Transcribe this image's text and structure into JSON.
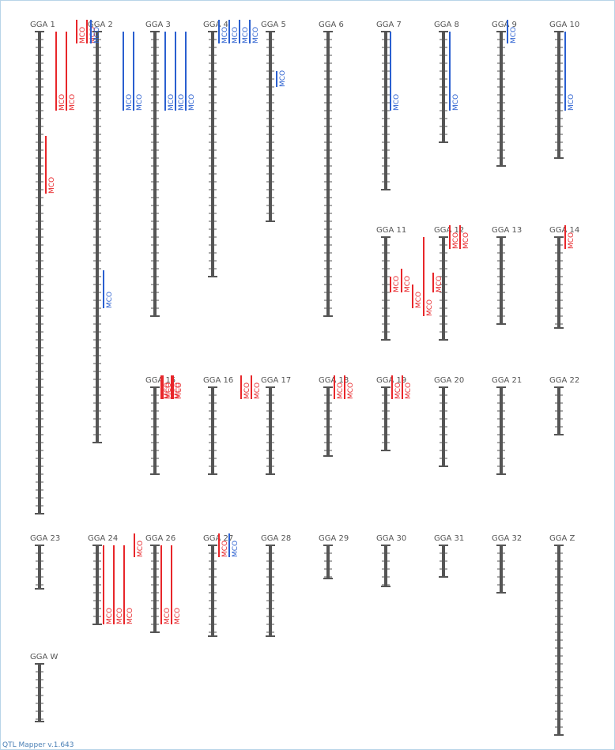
{
  "app": {
    "version_label": "QTL Mapper v.1.643"
  },
  "colors": {
    "axis": "#555555",
    "red": "#e8262a",
    "blue": "#2a5fd0",
    "frame": "#b8d4e8"
  },
  "chromosomes": [
    {
      "label": "GGA 1",
      "length": 61,
      "qtls": [
        {
          "start": 0,
          "end": 10,
          "color": "red",
          "text": "MCO"
        },
        {
          "start": 0,
          "end": 10,
          "color": "red",
          "text": "MCO"
        },
        {
          "start": -1.5,
          "end": 1.5,
          "color": "red",
          "text": "MCO"
        },
        {
          "start": -1.5,
          "end": 1.5,
          "color": "red",
          "text": "MCO"
        },
        {
          "start": 13.2,
          "end": 20.5,
          "color": "red",
          "text": "MCO"
        }
      ]
    },
    {
      "label": "GGA 2",
      "length": 52,
      "qtls": [
        {
          "start": -1.5,
          "end": 1.5,
          "color": "blue",
          "text": "MCO"
        },
        {
          "start": 30.2,
          "end": 35,
          "color": "blue",
          "text": "MCO"
        }
      ]
    },
    {
      "label": "GGA 3",
      "length": 36,
      "qtls": [
        {
          "start": 0,
          "end": 10,
          "color": "blue",
          "text": "MCO"
        },
        {
          "start": 0,
          "end": 10,
          "color": "blue",
          "text": "MCO"
        },
        {
          "start": 0,
          "end": 10,
          "color": "blue",
          "text": "MCO"
        },
        {
          "start": 0,
          "end": 10,
          "color": "blue",
          "text": "MCO"
        },
        {
          "start": 0,
          "end": 10,
          "color": "blue",
          "text": "MCO"
        }
      ]
    },
    {
      "label": "GGA 4",
      "length": 31,
      "qtls": [
        {
          "start": -1.5,
          "end": 1.5,
          "color": "blue",
          "text": "MCO"
        },
        {
          "start": -1.5,
          "end": 1.5,
          "color": "blue",
          "text": "MCO"
        },
        {
          "start": -1.5,
          "end": 1.5,
          "color": "blue",
          "text": "MCO"
        },
        {
          "start": -1.5,
          "end": 1.5,
          "color": "blue",
          "text": "MCO"
        }
      ]
    },
    {
      "label": "GGA 5",
      "length": 24,
      "qtls": [
        {
          "start": 5,
          "end": 7,
          "color": "blue",
          "text": "MCO"
        }
      ]
    },
    {
      "label": "GGA 6",
      "length": 36,
      "qtls": []
    },
    {
      "label": "GGA 7",
      "length": 20,
      "qtls": [
        {
          "start": 0,
          "end": 10,
          "color": "blue",
          "text": "MCO"
        }
      ]
    },
    {
      "label": "GGA 8",
      "length": 14,
      "qtls": [
        {
          "start": 0,
          "end": 10,
          "color": "blue",
          "text": "MCO"
        }
      ]
    },
    {
      "label": "GGA 9",
      "length": 17,
      "qtls": [
        {
          "start": -1.5,
          "end": 1.5,
          "color": "blue",
          "text": "MCO"
        }
      ]
    },
    {
      "label": "GGA 10",
      "length": 16,
      "qtls": [
        {
          "start": 0,
          "end": 10,
          "color": "blue",
          "text": "MCO"
        }
      ]
    },
    {
      "label": "GGA 11",
      "length": 13,
      "qtls": [
        {
          "start": 5,
          "end": 7,
          "color": "red",
          "text": "MCO"
        },
        {
          "start": 4,
          "end": 7,
          "color": "red",
          "text": "MCO"
        },
        {
          "start": 6,
          "end": 9,
          "color": "red",
          "text": "MCO"
        },
        {
          "start": 0,
          "end": 10,
          "color": "red",
          "text": "MCO"
        }
      ]
    },
    {
      "label": "GGA 12",
      "length": 13,
      "qtls": [
        {
          "start": 4.5,
          "end": 7,
          "color": "red",
          "text": "MCO"
        },
        {
          "start": -1.5,
          "end": 1.5,
          "color": "red",
          "text": "MCO"
        },
        {
          "start": -1.5,
          "end": 1.5,
          "color": "red",
          "text": "MCO"
        }
      ]
    },
    {
      "label": "GGA 13",
      "length": 11,
      "qtls": []
    },
    {
      "label": "GGA 14",
      "length": 11.5,
      "qtls": [
        {
          "start": -1.5,
          "end": 1.5,
          "color": "red",
          "text": "MCO"
        }
      ]
    },
    {
      "label": "GGA 15",
      "length": 11,
      "qtls": [
        {
          "start": -1.5,
          "end": 1.5,
          "color": "red",
          "text": "MCO"
        },
        {
          "start": -1.5,
          "end": 1.5,
          "color": "red",
          "text": "MCO"
        }
      ]
    },
    {
      "label": "GGA 16",
      "length": 11,
      "qtls": [
        {
          "start": -1.5,
          "end": 1.5,
          "color": "red",
          "text": "MCO"
        },
        {
          "start": -1.5,
          "end": 1.5,
          "color": "red",
          "text": "MCO"
        }
      ]
    },
    {
      "label": "GGA 17",
      "length": 11,
      "qtls": [
        {
          "start": -1.5,
          "end": 1.5,
          "color": "red",
          "text": "MCO"
        },
        {
          "start": -1.5,
          "end": 1.5,
          "color": "red",
          "text": "MCO"
        }
      ]
    },
    {
      "label": "GGA 18",
      "length": 8.7,
      "qtls": [
        {
          "start": -1.5,
          "end": 1.5,
          "color": "red",
          "text": "MCO"
        },
        {
          "start": -1.5,
          "end": 1.5,
          "color": "red",
          "text": "MCO"
        }
      ]
    },
    {
      "label": "GGA 19",
      "length": 8,
      "qtls": [
        {
          "start": -1.5,
          "end": 1.5,
          "color": "red",
          "text": "MCO"
        },
        {
          "start": -1.5,
          "end": 1.5,
          "color": "red",
          "text": "MCO"
        }
      ]
    },
    {
      "label": "GGA 20",
      "length": 10,
      "qtls": []
    },
    {
      "label": "GGA 21",
      "length": 11,
      "qtls": []
    },
    {
      "label": "GGA 22",
      "length": 6,
      "qtls": []
    },
    {
      "label": "GGA 23",
      "length": 5.5,
      "qtls": []
    },
    {
      "label": "GGA 24",
      "length": 10,
      "qtls": [
        {
          "start": 0,
          "end": 10,
          "color": "red",
          "text": "MCO"
        },
        {
          "start": 0,
          "end": 10,
          "color": "red",
          "text": "MCO"
        },
        {
          "start": 0,
          "end": 10,
          "color": "red",
          "text": "MCO"
        },
        {
          "start": -1.5,
          "end": 1.5,
          "color": "red",
          "text": "MCO"
        }
      ]
    },
    {
      "label": "GGA 26",
      "length": 11,
      "qtls": [
        {
          "start": 0,
          "end": 10,
          "color": "red",
          "text": "MCO"
        },
        {
          "start": 0,
          "end": 10,
          "color": "red",
          "text": "MCO"
        }
      ]
    },
    {
      "label": "GGA 27",
      "length": 11.5,
      "qtls": [
        {
          "start": -1.5,
          "end": 1.5,
          "color": "red",
          "text": "MCO"
        },
        {
          "start": -1.5,
          "end": 1.5,
          "color": "blue",
          "text": "MCO"
        }
      ]
    },
    {
      "label": "GGA 28",
      "length": 11.5,
      "qtls": []
    },
    {
      "label": "GGA 29",
      "length": 4.2,
      "qtls": []
    },
    {
      "label": "GGA 30",
      "length": 5.2,
      "qtls": []
    },
    {
      "label": "GGA 31",
      "length": 4,
      "qtls": []
    },
    {
      "label": "GGA 32",
      "length": 6,
      "qtls": []
    },
    {
      "label": "GGA Z",
      "length": 24,
      "qtls": []
    },
    {
      "label": "GGA W",
      "length": 7.3,
      "qtls": []
    }
  ]
}
